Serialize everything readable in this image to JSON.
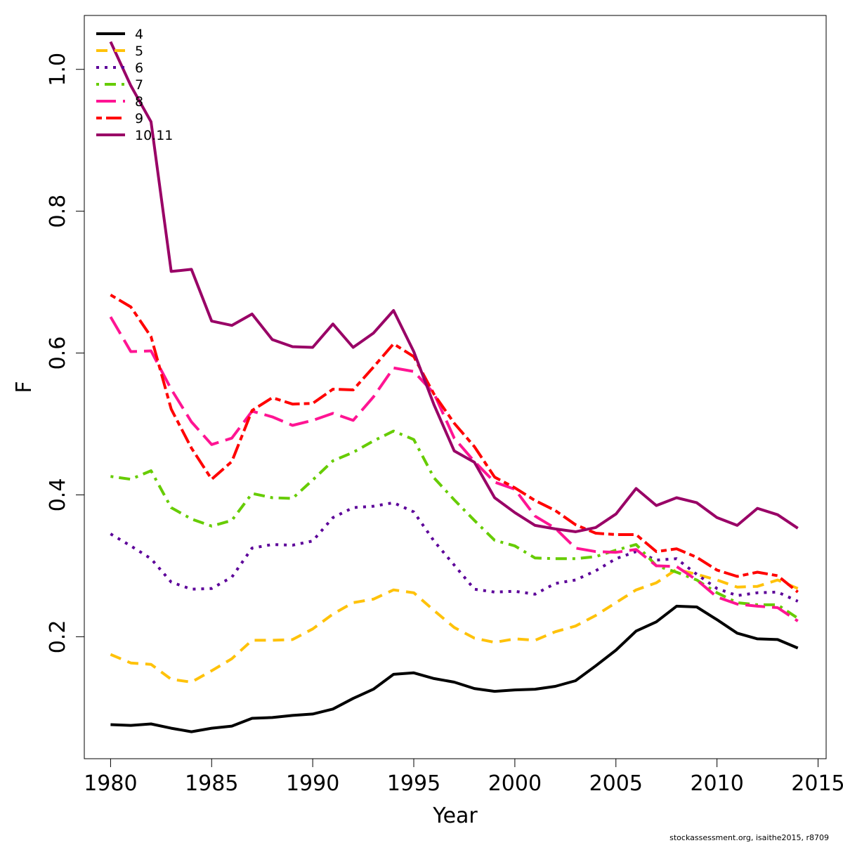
{
  "chart_data": {
    "type": "line",
    "title": "",
    "xlabel": "Year",
    "ylabel": "F",
    "xlim": [
      1978.7,
      2015.4
    ],
    "ylim": [
      0.028,
      1.076
    ],
    "xticks": [
      1980,
      1985,
      1990,
      1995,
      2000,
      2005,
      2010,
      2015
    ],
    "yticks": [
      0.2,
      0.4,
      0.6,
      0.8,
      1.0
    ],
    "ytick_labels": [
      "0.2",
      "0.4",
      "0.6",
      "0.8",
      "1.0"
    ],
    "legend_position": "top-left",
    "grid": false,
    "credit": "stockassessment.org, isaithe2015, r8709",
    "x": [
      1980,
      1981,
      1982,
      1983,
      1984,
      1985,
      1986,
      1987,
      1988,
      1989,
      1990,
      1991,
      1992,
      1993,
      1994,
      1995,
      1996,
      1997,
      1998,
      1999,
      2000,
      2001,
      2002,
      2003,
      2004,
      2005,
      2006,
      2007,
      2008,
      2009,
      2010,
      2011,
      2012,
      2013,
      2014
    ],
    "series": [
      {
        "name": "4",
        "color": "#000000",
        "dash": "solid",
        "values": [
          0.076,
          0.075,
          0.077,
          0.071,
          0.066,
          0.071,
          0.074,
          0.085,
          0.086,
          0.089,
          0.091,
          0.098,
          0.113,
          0.126,
          0.147,
          0.149,
          0.141,
          0.136,
          0.127,
          0.123,
          0.125,
          0.126,
          0.13,
          0.138,
          0.159,
          0.181,
          0.208,
          0.221,
          0.243,
          0.242,
          0.224,
          0.205,
          0.197,
          0.196,
          0.184
        ]
      },
      {
        "name": "5",
        "color": "#ffc20a",
        "dash": "dashed",
        "values": [
          0.175,
          0.163,
          0.161,
          0.14,
          0.136,
          0.152,
          0.169,
          0.195,
          0.195,
          0.196,
          0.211,
          0.232,
          0.248,
          0.253,
          0.266,
          0.262,
          0.237,
          0.213,
          0.198,
          0.192,
          0.197,
          0.195,
          0.207,
          0.215,
          0.23,
          0.248,
          0.266,
          0.276,
          0.295,
          0.288,
          0.28,
          0.27,
          0.271,
          0.28,
          0.268
        ]
      },
      {
        "name": "6",
        "color": "#5c0099",
        "dash": "dotted",
        "values": [
          0.345,
          0.328,
          0.31,
          0.277,
          0.267,
          0.268,
          0.284,
          0.325,
          0.33,
          0.329,
          0.335,
          0.368,
          0.382,
          0.384,
          0.389,
          0.376,
          0.335,
          0.301,
          0.267,
          0.263,
          0.264,
          0.26,
          0.275,
          0.28,
          0.293,
          0.31,
          0.32,
          0.308,
          0.31,
          0.288,
          0.268,
          0.258,
          0.262,
          0.263,
          0.25
        ]
      },
      {
        "name": "7",
        "color": "#66cc00",
        "dash": "dotdash",
        "values": [
          0.426,
          0.422,
          0.434,
          0.382,
          0.366,
          0.356,
          0.364,
          0.402,
          0.396,
          0.395,
          0.421,
          0.448,
          0.46,
          0.476,
          0.49,
          0.478,
          0.424,
          0.393,
          0.364,
          0.336,
          0.328,
          0.311,
          0.31,
          0.31,
          0.313,
          0.322,
          0.33,
          0.3,
          0.291,
          0.28,
          0.262,
          0.248,
          0.245,
          0.245,
          0.226
        ]
      },
      {
        "name": "8",
        "color": "#ff1493",
        "dash": "longdash",
        "values": [
          0.651,
          0.602,
          0.603,
          0.549,
          0.503,
          0.471,
          0.48,
          0.518,
          0.51,
          0.498,
          0.505,
          0.515,
          0.505,
          0.538,
          0.579,
          0.574,
          0.543,
          0.48,
          0.447,
          0.418,
          0.408,
          0.37,
          0.353,
          0.325,
          0.32,
          0.319,
          0.323,
          0.3,
          0.299,
          0.28,
          0.256,
          0.246,
          0.243,
          0.241,
          0.222
        ]
      },
      {
        "name": "9",
        "color": "#ff0000",
        "dash": "twodash",
        "values": [
          0.682,
          0.665,
          0.623,
          0.521,
          0.466,
          0.422,
          0.447,
          0.519,
          0.537,
          0.528,
          0.529,
          0.549,
          0.548,
          0.58,
          0.613,
          0.595,
          0.542,
          0.501,
          0.468,
          0.425,
          0.41,
          0.392,
          0.378,
          0.358,
          0.346,
          0.344,
          0.344,
          0.32,
          0.324,
          0.312,
          0.294,
          0.285,
          0.291,
          0.286,
          0.263
        ]
      },
      {
        "name": "10.11",
        "color": "#990066",
        "dash": "solid",
        "values": [
          1.039,
          0.977,
          0.926,
          0.715,
          0.718,
          0.645,
          0.639,
          0.655,
          0.619,
          0.609,
          0.608,
          0.641,
          0.608,
          0.628,
          0.66,
          0.602,
          0.527,
          0.462,
          0.446,
          0.396,
          0.375,
          0.357,
          0.352,
          0.348,
          0.354,
          0.373,
          0.409,
          0.385,
          0.396,
          0.389,
          0.368,
          0.357,
          0.381,
          0.372,
          0.353
        ]
      }
    ]
  }
}
